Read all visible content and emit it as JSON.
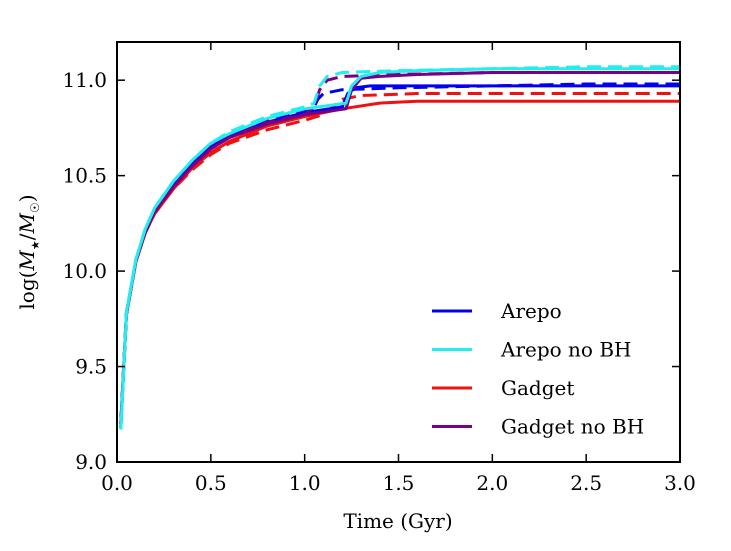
{
  "chart_data": {
    "type": "line",
    "title": "",
    "xlabel": "Time (Gyr)",
    "ylabel": "log(M★/M☉)",
    "ylabel_parts": {
      "base": "log(",
      "m": "M",
      "star": "★",
      "slash": "/",
      "m2": "M",
      "sun": "☉",
      "close": ")"
    },
    "xlim": [
      0.0,
      3.0
    ],
    "ylim": [
      9.0,
      11.2
    ],
    "xticks": [
      0.0,
      0.5,
      1.0,
      1.5,
      2.0,
      2.5,
      3.0
    ],
    "xtick_labels": [
      "0.0",
      "0.5",
      "1.0",
      "1.5",
      "2.0",
      "2.5",
      "3.0"
    ],
    "yticks": [
      9.0,
      9.5,
      10.0,
      10.5,
      11.0
    ],
    "ytick_labels": [
      "9.0",
      "9.5",
      "10.0",
      "10.5",
      "11.0"
    ],
    "grid": false,
    "legend_position": "bottom-right",
    "legend": [
      {
        "label": "Arepo",
        "color": "#0000ee"
      },
      {
        "label": "Arepo no BH",
        "color": "#22eeee"
      },
      {
        "label": "Gadget",
        "color": "#ee1111"
      },
      {
        "label": "Gadget no BH",
        "color": "#770088"
      }
    ],
    "series": [
      {
        "name": "Gadget solid",
        "legend": "Gadget",
        "color": "#ee1111",
        "dash": "solid",
        "x": [
          0.02,
          0.05,
          0.1,
          0.15,
          0.2,
          0.3,
          0.4,
          0.5,
          0.6,
          0.8,
          1.0,
          1.2,
          1.4,
          1.6,
          2.0,
          2.5,
          3.0
        ],
        "y": [
          9.2,
          9.78,
          10.05,
          10.2,
          10.3,
          10.43,
          10.54,
          10.62,
          10.68,
          10.76,
          10.81,
          10.85,
          10.88,
          10.89,
          10.89,
          10.89,
          10.89
        ]
      },
      {
        "name": "Gadget dashed",
        "legend": "Gadget",
        "color": "#ee1111",
        "dash": "dashed",
        "x": [
          0.02,
          0.05,
          0.1,
          0.15,
          0.2,
          0.3,
          0.4,
          0.5,
          0.6,
          0.8,
          1.0,
          1.1,
          1.15,
          1.2,
          1.3,
          1.6,
          2.0,
          2.5,
          3.0
        ],
        "y": [
          9.2,
          9.78,
          10.05,
          10.2,
          10.3,
          10.43,
          10.53,
          10.61,
          10.67,
          10.74,
          10.79,
          10.82,
          10.86,
          10.9,
          10.92,
          10.93,
          10.93,
          10.93,
          10.93
        ]
      },
      {
        "name": "Arepo solid",
        "legend": "Arepo",
        "color": "#0000ee",
        "dash": "solid",
        "x": [
          0.02,
          0.05,
          0.1,
          0.15,
          0.2,
          0.3,
          0.4,
          0.5,
          0.6,
          0.8,
          1.0,
          1.2,
          1.23,
          1.27,
          1.35,
          1.5,
          2.0,
          2.5,
          3.0
        ],
        "y": [
          9.18,
          9.77,
          10.05,
          10.21,
          10.31,
          10.45,
          10.56,
          10.65,
          10.71,
          10.78,
          10.83,
          10.86,
          10.93,
          10.96,
          10.97,
          10.97,
          10.97,
          10.97,
          10.97
        ]
      },
      {
        "name": "Arepo dashed",
        "legend": "Arepo",
        "color": "#0000ee",
        "dash": "dashed",
        "x": [
          0.02,
          0.05,
          0.1,
          0.15,
          0.2,
          0.3,
          0.4,
          0.5,
          0.6,
          0.8,
          1.0,
          1.05,
          1.07,
          1.1,
          1.2,
          1.5,
          2.0,
          2.5,
          3.0
        ],
        "y": [
          9.18,
          9.77,
          10.05,
          10.21,
          10.31,
          10.45,
          10.56,
          10.65,
          10.71,
          10.79,
          10.84,
          10.86,
          10.9,
          10.93,
          10.95,
          10.96,
          10.97,
          10.98,
          10.98
        ]
      },
      {
        "name": "Gadget no BH solid",
        "legend": "Gadget no BH",
        "color": "#770088",
        "dash": "solid",
        "x": [
          0.02,
          0.05,
          0.1,
          0.15,
          0.2,
          0.3,
          0.4,
          0.5,
          0.6,
          0.8,
          1.0,
          1.22,
          1.25,
          1.3,
          1.4,
          1.6,
          2.0,
          2.5,
          3.0
        ],
        "y": [
          9.2,
          9.78,
          10.05,
          10.2,
          10.31,
          10.44,
          10.55,
          10.64,
          10.7,
          10.77,
          10.82,
          10.85,
          10.95,
          11.01,
          11.02,
          11.03,
          11.04,
          11.04,
          11.04
        ]
      },
      {
        "name": "Gadget no BH dashed",
        "legend": "Gadget no BH",
        "color": "#770088",
        "dash": "dashed",
        "x": [
          0.02,
          0.05,
          0.1,
          0.15,
          0.2,
          0.3,
          0.4,
          0.5,
          0.6,
          0.8,
          1.0,
          1.05,
          1.08,
          1.12,
          1.2,
          1.5,
          2.0,
          2.5,
          3.0
        ],
        "y": [
          9.2,
          9.78,
          10.05,
          10.2,
          10.31,
          10.44,
          10.55,
          10.64,
          10.7,
          10.78,
          10.82,
          10.86,
          10.95,
          11.0,
          11.02,
          11.03,
          11.04,
          11.04,
          11.04
        ]
      },
      {
        "name": "Arepo no BH solid",
        "legend": "Arepo no BH",
        "color": "#22eeee",
        "dash": "solid",
        "x": [
          0.02,
          0.05,
          0.1,
          0.15,
          0.2,
          0.3,
          0.4,
          0.5,
          0.6,
          0.8,
          1.0,
          1.22,
          1.25,
          1.3,
          1.4,
          1.6,
          2.0,
          2.5,
          3.0
        ],
        "y": [
          9.17,
          9.78,
          10.06,
          10.22,
          10.33,
          10.47,
          10.58,
          10.67,
          10.72,
          10.8,
          10.85,
          10.88,
          10.97,
          11.02,
          11.04,
          11.05,
          11.06,
          11.06,
          11.06
        ]
      },
      {
        "name": "Arepo no BH dashed",
        "legend": "Arepo no BH",
        "color": "#22eeee",
        "dash": "dashed",
        "x": [
          0.02,
          0.05,
          0.1,
          0.15,
          0.2,
          0.3,
          0.4,
          0.5,
          0.6,
          0.8,
          1.0,
          1.05,
          1.08,
          1.12,
          1.2,
          1.5,
          2.0,
          2.5,
          3.0
        ],
        "y": [
          9.17,
          9.78,
          10.06,
          10.22,
          10.33,
          10.47,
          10.58,
          10.67,
          10.73,
          10.81,
          10.86,
          10.88,
          10.97,
          11.02,
          11.04,
          11.05,
          11.06,
          11.07,
          11.07
        ]
      }
    ]
  }
}
